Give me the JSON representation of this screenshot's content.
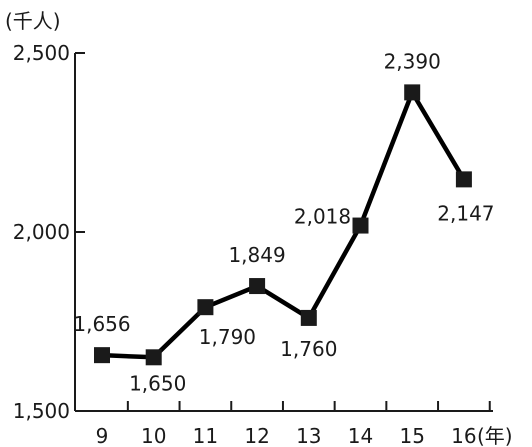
{
  "chart_data": {
    "type": "line",
    "title": "",
    "ylabel": "(千人)",
    "xlabel": "(年)",
    "ylim": [
      1500,
      2500
    ],
    "yticks": [
      1500,
      2000,
      2500
    ],
    "ytick_labels": [
      "1,500",
      "2,000",
      "2,500"
    ],
    "categories": [
      "9",
      "10",
      "11",
      "12",
      "13",
      "14",
      "15",
      "16"
    ],
    "values": [
      1656,
      1650,
      1790,
      1849,
      1760,
      2018,
      2390,
      2147
    ],
    "data_labels": [
      "1,656",
      "1,650",
      "1,790",
      "1,849",
      "1,760",
      "2,018",
      "2,390",
      "2,147"
    ],
    "grid": false,
    "legend": "none"
  }
}
